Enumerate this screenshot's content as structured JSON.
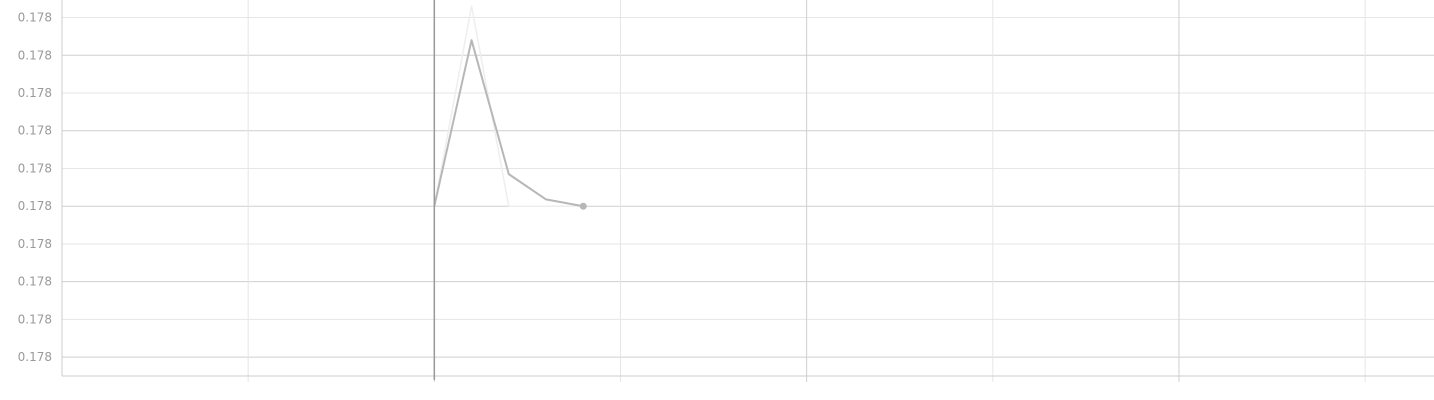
{
  "chart_data": {
    "type": "line",
    "title": "",
    "xlabel": "",
    "ylabel": "",
    "grid": true,
    "legend": "none",
    "x_tick_labels": [],
    "y_tick_labels": [
      "0.178",
      "0.178",
      "0.178",
      "0.178",
      "0.178",
      "0.178",
      "0.178",
      "0.178",
      "0.178",
      "0.178"
    ],
    "y_ticks_relative": [
      1.0,
      0.9,
      0.8,
      0.7,
      0.6,
      0.5,
      0.4,
      0.3,
      0.2,
      0.1
    ],
    "xlim": [
      0,
      7.37
    ],
    "ylim": [
      0.05,
      1.02
    ],
    "series": [
      {
        "role": "raw",
        "color": "#eeeeee",
        "x": [
          2.0,
          2.2,
          2.4,
          2.6,
          2.8
        ],
        "values": [
          0.5,
          1.03,
          0.5,
          0.5,
          0.5
        ]
      },
      {
        "role": "smoothed",
        "color": "#b7b7b7",
        "x": [
          2.0,
          2.2,
          2.4,
          2.6,
          2.8
        ],
        "values": [
          0.5,
          0.94,
          0.585,
          0.518,
          0.5
        ],
        "end_marker": true
      }
    ],
    "cursor_x": 2.0,
    "colors": {
      "grid_major": "#cfcfcf",
      "grid_minor": "#e6e6e6",
      "axis": "#cccccc",
      "cursor": "#999999",
      "tick_label": "#9a9a9a"
    }
  }
}
